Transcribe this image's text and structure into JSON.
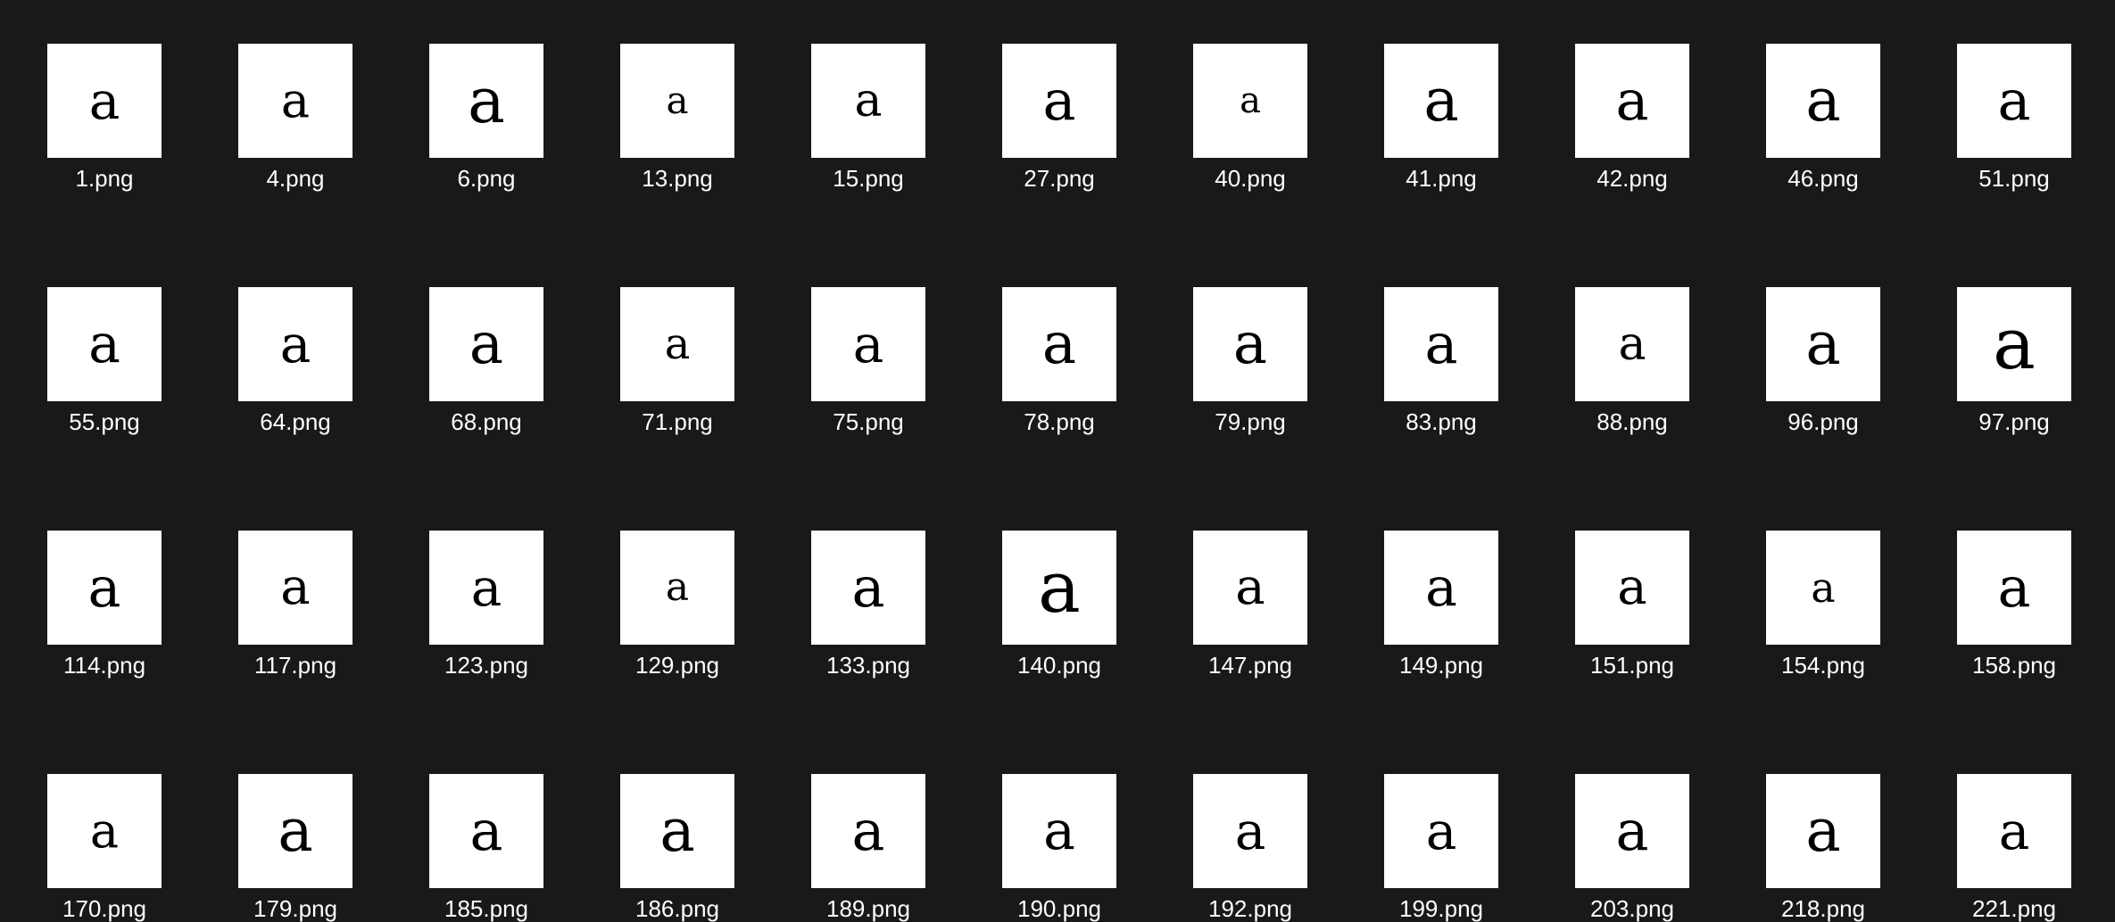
{
  "background_color": "#191919",
  "thumbnail_background": "#ffffff",
  "thumbnail_glyph": "a",
  "files": [
    "1.png",
    "4.png",
    "6.png",
    "13.png",
    "15.png",
    "27.png",
    "40.png",
    "41.png",
    "42.png",
    "46.png",
    "51.png",
    "55.png",
    "64.png",
    "68.png",
    "71.png",
    "75.png",
    "78.png",
    "79.png",
    "83.png",
    "88.png",
    "96.png",
    "97.png",
    "114.png",
    "117.png",
    "123.png",
    "129.png",
    "133.png",
    "140.png",
    "147.png",
    "149.png",
    "151.png",
    "154.png",
    "158.png",
    "170.png",
    "179.png",
    "185.png",
    "186.png",
    "189.png",
    "190.png",
    "192.png",
    "199.png",
    "203.png",
    "218.png",
    "221.png"
  ]
}
